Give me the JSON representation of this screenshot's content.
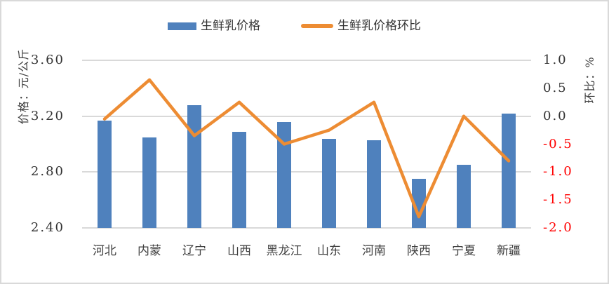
{
  "legend": {
    "items": [
      {
        "label": "生鲜乳价格",
        "type": "bar",
        "color": "#4F81BD"
      },
      {
        "label": "生鲜乳价格环比",
        "type": "line",
        "color": "#ED8C33"
      }
    ]
  },
  "left_axis": {
    "title": "价格：元/公斤",
    "tick_labels": [
      "3.60",
      "3.20",
      "2.80",
      "2.40"
    ]
  },
  "right_axis": {
    "title": "环比：%",
    "tick_labels": [
      "1.0",
      "0.5",
      "0.0",
      "-0.5",
      "-1.0",
      "-1.5",
      "-2.0"
    ],
    "positive_tick_color": "#333333",
    "negative_tick_color": "#FF0000"
  },
  "colors": {
    "bar": "#4F81BD",
    "line": "#ED8C33",
    "gridline": "#D9D9D9",
    "border": "#D9D9D9"
  },
  "chart_data": {
    "type": "bar+line combo",
    "categories": [
      "河北",
      "内蒙",
      "辽宁",
      "山西",
      "黑龙江",
      "山东",
      "河南",
      "陕西",
      "宁夏",
      "新疆"
    ],
    "series": [
      {
        "name": "生鲜乳价格",
        "type": "bar",
        "axis": "left",
        "color": "#4F81BD",
        "values": [
          3.17,
          3.05,
          3.28,
          3.09,
          3.16,
          3.04,
          3.03,
          2.75,
          2.85,
          3.22
        ]
      },
      {
        "name": "生鲜乳价格环比",
        "type": "line",
        "axis": "right",
        "color": "#ED8C33",
        "values": [
          -0.05,
          0.65,
          -0.35,
          0.25,
          -0.5,
          -0.25,
          0.25,
          -1.8,
          0.0,
          -0.8
        ]
      }
    ],
    "left_ylabel": "价格：元/公斤",
    "right_ylabel": "环比：%",
    "left_ylim": [
      2.4,
      3.6
    ],
    "right_ylim": [
      -2.0,
      1.0
    ],
    "grid": true,
    "legend_position": "top"
  }
}
